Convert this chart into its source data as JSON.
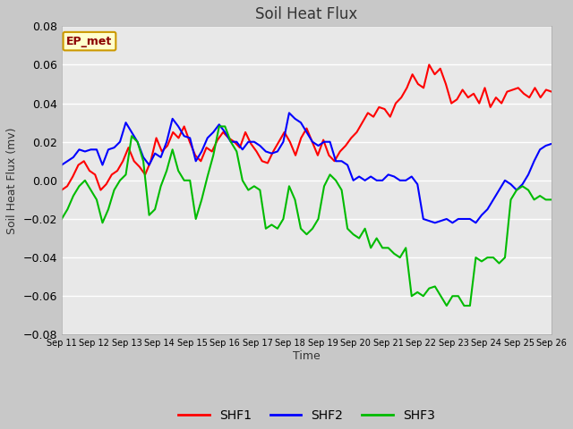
{
  "title": "Soil Heat Flux",
  "ylabel": "Soil Heat Flux (mv)",
  "xlabel": "Time",
  "ylim": [
    -0.08,
    0.08
  ],
  "yticks": [
    -0.08,
    -0.06,
    -0.04,
    -0.02,
    0.0,
    0.02,
    0.04,
    0.06,
    0.08
  ],
  "xtick_labels": [
    "Sep 11",
    "Sep 12",
    "Sep 13",
    "Sep 14",
    "Sep 15",
    "Sep 16",
    "Sep 17",
    "Sep 18",
    "Sep 19",
    "Sep 20",
    "Sep 21",
    "Sep 22",
    "Sep 23",
    "Sep 24",
    "Sep 25",
    "Sep 26"
  ],
  "colors": {
    "SHF1": "#ff0000",
    "SHF2": "#0000ff",
    "SHF3": "#00bb00"
  },
  "fig_bg_color": "#c8c8c8",
  "plot_bg_color": "#e8e8e8",
  "annotation_text": "EP_met",
  "annotation_bg": "#ffffcc",
  "annotation_border": "#cc9900",
  "legend_entries": [
    "SHF1",
    "SHF2",
    "SHF3"
  ],
  "SHF1": [
    -0.005,
    -0.003,
    0.002,
    0.008,
    0.01,
    0.005,
    0.003,
    -0.005,
    -0.002,
    0.003,
    0.005,
    0.01,
    0.017,
    0.01,
    0.007,
    0.003,
    0.01,
    0.022,
    0.015,
    0.018,
    0.025,
    0.022,
    0.028,
    0.02,
    0.013,
    0.01,
    0.017,
    0.015,
    0.021,
    0.025,
    0.022,
    0.02,
    0.017,
    0.025,
    0.019,
    0.015,
    0.01,
    0.009,
    0.015,
    0.02,
    0.025,
    0.02,
    0.013,
    0.022,
    0.027,
    0.02,
    0.013,
    0.021,
    0.013,
    0.01,
    0.015,
    0.018,
    0.022,
    0.025,
    0.03,
    0.035,
    0.033,
    0.038,
    0.037,
    0.033,
    0.04,
    0.043,
    0.048,
    0.055,
    0.05,
    0.048,
    0.06,
    0.055,
    0.058,
    0.05,
    0.04,
    0.042,
    0.047,
    0.043,
    0.045,
    0.04,
    0.048,
    0.038,
    0.043,
    0.04,
    0.046,
    0.047,
    0.048,
    0.045,
    0.043,
    0.048,
    0.043,
    0.047,
    0.046
  ],
  "SHF2": [
    0.008,
    0.01,
    0.012,
    0.016,
    0.015,
    0.016,
    0.016,
    0.008,
    0.016,
    0.017,
    0.02,
    0.03,
    0.025,
    0.02,
    0.012,
    0.008,
    0.014,
    0.012,
    0.02,
    0.032,
    0.028,
    0.023,
    0.022,
    0.01,
    0.015,
    0.022,
    0.025,
    0.029,
    0.025,
    0.02,
    0.02,
    0.016,
    0.02,
    0.02,
    0.018,
    0.015,
    0.014,
    0.015,
    0.02,
    0.035,
    0.032,
    0.03,
    0.025,
    0.02,
    0.018,
    0.02,
    0.02,
    0.01,
    0.01,
    0.008,
    0.0,
    0.002,
    0.0,
    0.002,
    0.0,
    0.0,
    0.003,
    0.002,
    0.0,
    0.0,
    0.002,
    -0.002,
    -0.02,
    -0.021,
    -0.022,
    -0.021,
    -0.02,
    -0.022,
    -0.02,
    -0.02,
    -0.02,
    -0.022,
    -0.018,
    -0.015,
    -0.01,
    -0.005,
    0.0,
    -0.002,
    -0.005,
    -0.002,
    0.003,
    0.01,
    0.016,
    0.018,
    0.019
  ],
  "SHF3": [
    -0.02,
    -0.015,
    -0.008,
    -0.003,
    0.0,
    -0.005,
    -0.01,
    -0.022,
    -0.015,
    -0.005,
    0.0,
    0.003,
    0.023,
    0.02,
    0.01,
    -0.018,
    -0.015,
    -0.003,
    0.005,
    0.016,
    0.005,
    0.0,
    0.0,
    -0.02,
    -0.01,
    0.002,
    0.013,
    0.028,
    0.028,
    0.02,
    0.015,
    0.0,
    -0.005,
    -0.003,
    -0.005,
    -0.025,
    -0.023,
    -0.025,
    -0.02,
    -0.003,
    -0.01,
    -0.025,
    -0.028,
    -0.025,
    -0.02,
    -0.003,
    0.003,
    0.0,
    -0.005,
    -0.025,
    -0.028,
    -0.03,
    -0.025,
    -0.035,
    -0.03,
    -0.035,
    -0.035,
    -0.038,
    -0.04,
    -0.035,
    -0.06,
    -0.058,
    -0.06,
    -0.056,
    -0.055,
    -0.06,
    -0.065,
    -0.06,
    -0.06,
    -0.065,
    -0.065,
    -0.04,
    -0.042,
    -0.04,
    -0.04,
    -0.043,
    -0.04,
    -0.01,
    -0.005,
    -0.003,
    -0.005,
    -0.01,
    -0.008,
    -0.01,
    -0.01
  ]
}
